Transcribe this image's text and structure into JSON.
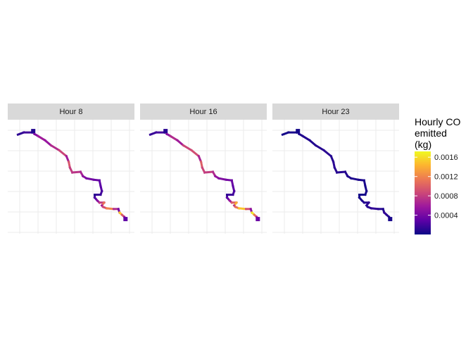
{
  "chart_data": {
    "type": "faceted-map",
    "x_range": [
      0,
      100
    ],
    "y_range": [
      0,
      100
    ],
    "grid": true,
    "facets": [
      {
        "label": "Hour 8",
        "segment_values": [
          0.00012,
          0.00018,
          8e-05,
          0.0003,
          0.00045,
          0.0006,
          0.00055,
          0.0007,
          0.00085,
          0.0006,
          0.00095,
          0.0008,
          0.00075,
          0.00065,
          0.0005,
          0.0004,
          0.00035,
          0.0003,
          0.00028,
          0.0002,
          0.00015,
          0.0001,
          0.00025,
          0.0005,
          0.0008,
          0.0011,
          0.0006,
          0.0009,
          0.0012,
          0.0007,
          0.0004,
          0.0015,
          0.00095,
          0.0006,
          0.0003
        ]
      },
      {
        "label": "Hour 16",
        "segment_values": [
          0.00015,
          0.0002,
          0.0001,
          0.00035,
          0.0005,
          0.0007,
          0.0006,
          0.00085,
          0.0009,
          0.00065,
          0.001,
          0.00085,
          0.0008,
          0.0007,
          0.00055,
          0.00045,
          0.0004,
          0.00035,
          0.0003,
          0.00022,
          0.00018,
          0.00012,
          0.0003,
          0.0006,
          0.001,
          0.0014,
          0.00075,
          0.0011,
          0.0015,
          0.0009,
          0.0005,
          0.00165,
          0.0011,
          0.0007,
          0.00035
        ]
      },
      {
        "label": "Hour 23",
        "segment_values": [
          3e-05,
          4e-05,
          2e-05,
          5e-05,
          6e-05,
          8e-05,
          7e-05,
          9e-05,
          0.0001,
          8e-05,
          0.00011,
          0.0001,
          9e-05,
          8e-05,
          7e-05,
          6e-05,
          5e-05,
          5e-05,
          4e-05,
          4e-05,
          3e-05,
          2e-05,
          4e-05,
          6e-05,
          9e-05,
          0.00012,
          8e-05,
          0.0001,
          0.00013,
          9e-05,
          6e-05,
          0.00014,
          0.0001,
          7e-05,
          4e-05
        ]
      }
    ],
    "color_scale": {
      "title_lines": [
        "Hourly CO",
        "emitted",
        "(kg)"
      ],
      "ticks": [
        0.0004,
        0.0008,
        0.0012,
        0.0016
      ],
      "tick_labels": [
        "0.0004",
        "0.0008",
        "0.0012",
        "0.0016"
      ],
      "min": 0.0,
      "max": 0.00172,
      "palette": [
        "#0d0887",
        "#5c01a6",
        "#9c179e",
        "#cc4778",
        "#ed7953",
        "#fdb42f",
        "#f0f921"
      ]
    }
  }
}
